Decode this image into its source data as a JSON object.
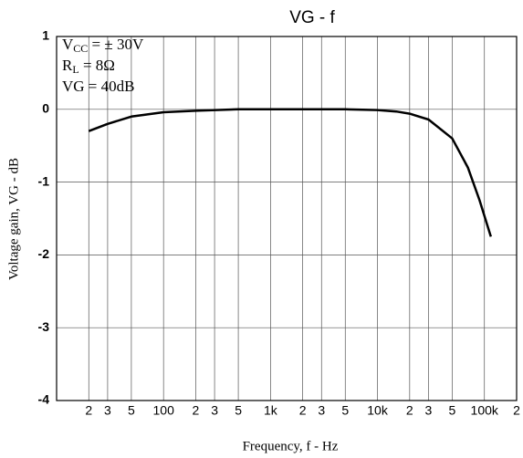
{
  "chart_data": {
    "type": "line",
    "title": "VG - f",
    "x_label": "Frequency, f - Hz",
    "y_label": "Voltage gain, VG - dB",
    "annotations": [
      {
        "base": "V",
        "sub": "CC",
        "rest": " = ± 30V"
      },
      {
        "base": "R",
        "sub": "L",
        "rest": " = 8Ω"
      },
      {
        "base": "VG = 40dB"
      }
    ],
    "log_x": true,
    "grid": true,
    "xlim": [
      10,
      200000
    ],
    "ylim": [
      -4,
      1
    ],
    "xticks": [
      {
        "value": 20,
        "label": "2"
      },
      {
        "value": 30,
        "label": "3"
      },
      {
        "value": 50,
        "label": "5"
      },
      100,
      {
        "value": 200,
        "label": "2"
      },
      {
        "value": 300,
        "label": "3"
      },
      {
        "value": 500,
        "label": "5"
      },
      {
        "value": 1000,
        "label": "1k"
      },
      {
        "value": 2000,
        "label": "2"
      },
      {
        "value": 3000,
        "label": "3"
      },
      {
        "value": 5000,
        "label": "5"
      },
      {
        "value": 10000,
        "label": "10k"
      },
      {
        "value": 20000,
        "label": "2"
      },
      {
        "value": 30000,
        "label": "3"
      },
      {
        "value": 50000,
        "label": "5"
      },
      {
        "value": 100000,
        "label": "100k"
      },
      {
        "value": 200000,
        "label": "2"
      }
    ],
    "yticks": [
      -4,
      -3,
      -2,
      -1,
      0,
      1
    ],
    "series": [
      {
        "color": "#000000",
        "x": [
          20,
          30,
          50,
          100,
          200,
          500,
          1000,
          5000,
          10000,
          15000,
          20000,
          30000,
          50000,
          70000,
          90000,
          115000
        ],
        "values": [
          -0.3,
          -0.2,
          -0.1,
          -0.04,
          -0.02,
          0,
          0,
          0,
          -0.01,
          -0.03,
          -0.06,
          -0.14,
          -0.4,
          -0.8,
          -1.25,
          -1.75
        ]
      }
    ]
  }
}
